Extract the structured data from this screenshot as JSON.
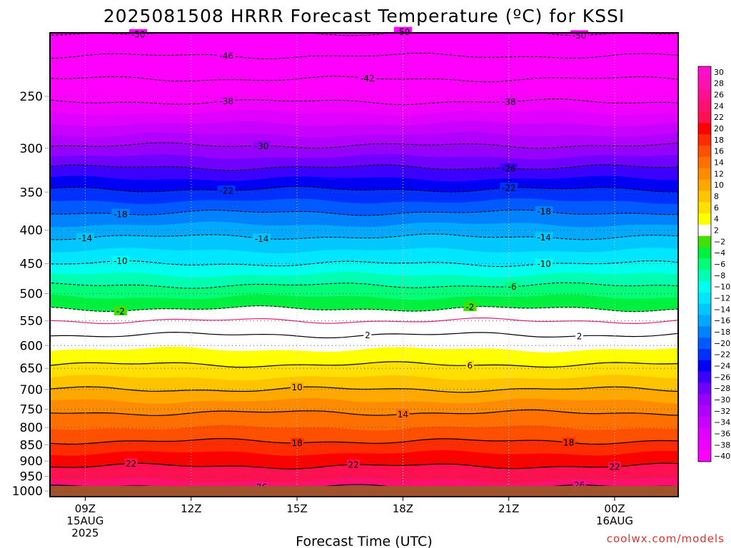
{
  "header": {
    "title": "2025081508 HRRR Forecast Temperature (ºC) for KSSI"
  },
  "footer": {
    "credit": "coolwx.com/models"
  },
  "colors": {
    "ground": "#a0522d",
    "zero_band": "#ffffff",
    "zero_line": "#e0207a",
    "contour_line": "#000000"
  },
  "chart_data": {
    "type": "heatmap",
    "title": "2025081508 HRRR Forecast Temperature (ºC) for KSSI",
    "xlabel": "Forecast Time (UTC)",
    "ylabel": "",
    "x_unit": "forecast hour after 2025-08-15 08Z",
    "xlim": [
      8,
      25.8
    ],
    "ylim_hpa": [
      1020,
      200
    ],
    "y_scale": "log",
    "grid": true,
    "x_ticks": [
      {
        "hour": 9,
        "lines": [
          "09Z",
          "15AUG",
          "2025"
        ]
      },
      {
        "hour": 12,
        "lines": [
          "12Z"
        ]
      },
      {
        "hour": 15,
        "lines": [
          "15Z"
        ]
      },
      {
        "hour": 18,
        "lines": [
          "18Z"
        ]
      },
      {
        "hour": 21,
        "lines": [
          "21Z"
        ]
      },
      {
        "hour": 24,
        "lines": [
          "00Z",
          "16AUG"
        ]
      }
    ],
    "y_ticks": [
      250,
      300,
      350,
      400,
      450,
      500,
      550,
      600,
      650,
      700,
      750,
      800,
      850,
      900,
      950,
      1000
    ],
    "colorbar": {
      "levels": [
        -40,
        -38,
        -36,
        -34,
        -32,
        -30,
        -28,
        -26,
        -24,
        -22,
        -20,
        -18,
        -16,
        -14,
        -12,
        -10,
        -8,
        -6,
        -4,
        -2,
        2,
        4,
        6,
        8,
        10,
        12,
        14,
        16,
        18,
        20,
        22,
        24,
        26,
        28,
        30
      ],
      "colors": [
        "#ff00ff",
        "#ef00ff",
        "#df00ff",
        "#c800ff",
        "#b000ff",
        "#9600ff",
        "#7000ff",
        "#3c00ff",
        "#0000f5",
        "#0030ff",
        "#005aff",
        "#0082ff",
        "#00a8ff",
        "#00c8ff",
        "#00e6ff",
        "#00ffee",
        "#00ffb0",
        "#00ff78",
        "#00f040",
        "#40e000",
        "#ffffff",
        "#ffff00",
        "#ffe000",
        "#ffc400",
        "#ffa800",
        "#ff8c00",
        "#ff7000",
        "#ff5000",
        "#ff2c00",
        "#ff0000",
        "#ff1050",
        "#ff1070",
        "#ff1090",
        "#ff10b0",
        "#ff10c8"
      ]
    },
    "temperature_profile": [
      {
        "p": 1000,
        "t": 27
      },
      {
        "p": 950,
        "t": 23
      },
      {
        "p": 900,
        "t": 21.5
      },
      {
        "p": 850,
        "t": 18.5
      },
      {
        "p": 800,
        "t": 16
      },
      {
        "p": 750,
        "t": 13.5
      },
      {
        "p": 700,
        "t": 10
      },
      {
        "p": 650,
        "t": 6.5
      },
      {
        "p": 600,
        "t": 3.5
      },
      {
        "p": 550,
        "t": 0
      },
      {
        "p": 500,
        "t": -4.5
      },
      {
        "p": 450,
        "t": -10
      },
      {
        "p": 400,
        "t": -15
      },
      {
        "p": 350,
        "t": -21.5
      },
      {
        "p": 300,
        "t": -29.5
      },
      {
        "p": 250,
        "t": -39
      },
      {
        "p": 200,
        "t": -50
      }
    ],
    "contours": [
      {
        "level": 26,
        "style": "solid",
        "label_hours": [
          14,
          23
        ]
      },
      {
        "level": 22,
        "style": "solid",
        "label_hours": [
          10.3,
          16.6,
          24
        ]
      },
      {
        "level": 18,
        "style": "solid",
        "label_hours": [
          15,
          22.7
        ]
      },
      {
        "level": 14,
        "style": "solid",
        "label_hours": [
          18
        ]
      },
      {
        "level": 10,
        "style": "solid",
        "label_hours": [
          15
        ]
      },
      {
        "level": 6,
        "style": "solid",
        "label_hours": [
          19.9
        ]
      },
      {
        "level": 2,
        "style": "solid",
        "label_hours": [
          17,
          23
        ]
      },
      {
        "level": 0,
        "style": "zero",
        "label_hours": []
      },
      {
        "level": -2,
        "style": "dashed",
        "label_hours": [
          10,
          19.9
        ]
      },
      {
        "level": -6,
        "style": "dashed",
        "label_hours": [
          21.1
        ]
      },
      {
        "level": -10,
        "style": "dashed",
        "label_hours": [
          10,
          22
        ]
      },
      {
        "level": -14,
        "style": "dashed",
        "label_hours": [
          9,
          14,
          22
        ]
      },
      {
        "level": -18,
        "style": "dashed",
        "label_hours": [
          10,
          22
        ]
      },
      {
        "level": -22,
        "style": "dashed",
        "label_hours": [
          13,
          21
        ]
      },
      {
        "level": -26,
        "style": "dashed",
        "label_hours": [
          21
        ]
      },
      {
        "level": -30,
        "style": "dashed",
        "label_hours": [
          14
        ]
      },
      {
        "level": -38,
        "style": "dashed",
        "label_hours": [
          13,
          21
        ]
      },
      {
        "level": -42,
        "style": "dashed",
        "label_hours": [
          17
        ]
      },
      {
        "level": -46,
        "style": "dashed",
        "label_hours": [
          13
        ]
      },
      {
        "level": -50,
        "style": "dashed",
        "label_hours": [
          10.5,
          18,
          23
        ]
      }
    ]
  }
}
